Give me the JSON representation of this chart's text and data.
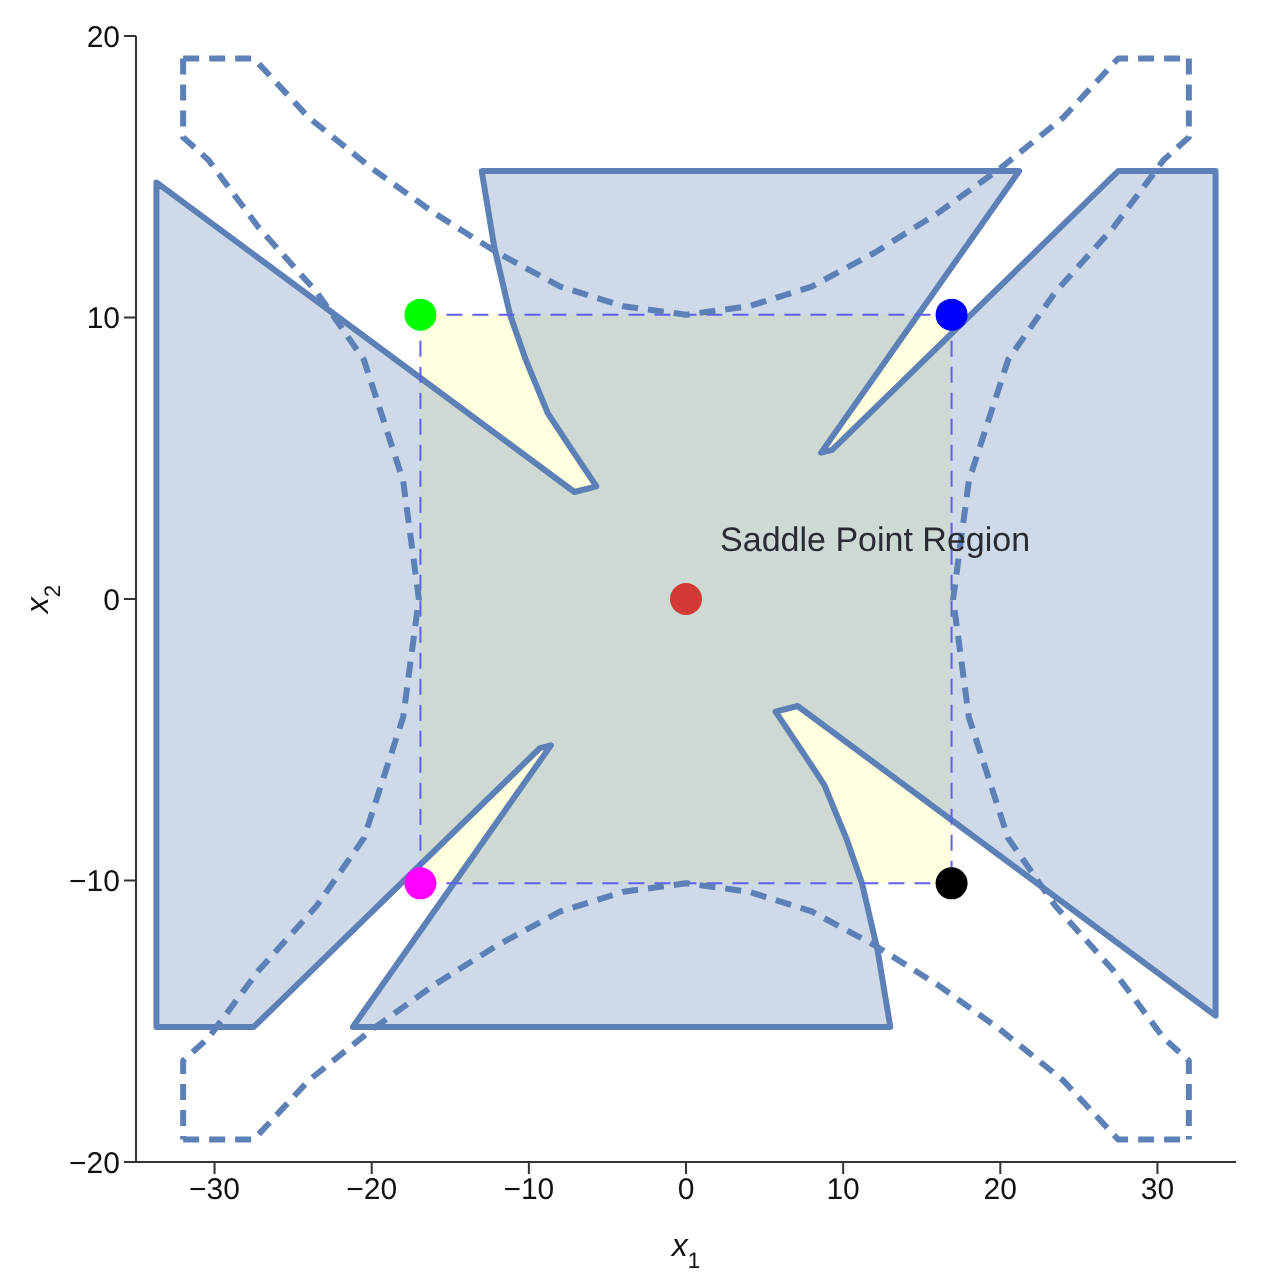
{
  "chart_data": {
    "type": "line",
    "xlabel": "x$_{1}$",
    "ylabel": "x$_{2}$",
    "xlim": [
      -35,
      35
    ],
    "ylim": [
      -20,
      20
    ],
    "xticks": [
      -30,
      -20,
      -10,
      0,
      10,
      20,
      30
    ],
    "yticks": [
      -20,
      -10,
      0,
      10,
      20
    ],
    "annotations": [
      "Saddle Point Region"
    ],
    "series": [
      {
        "type": "area",
        "color": "#ffff98",
        "x": [
          -16.9,
          16.9,
          16.9,
          -16.9,
          -16.9
        ],
        "values": [
          10.1,
          10.1,
          -10.1,
          -10.1,
          10.1
        ]
      },
      {
        "type": "area",
        "color": "#5d80b6",
        "line_style": "solid",
        "x": [
          -13,
          21.2,
          8.6,
          9.3,
          27.5,
          33.7,
          33.7,
          7.1,
          5.7,
          7.5,
          8.8,
          10.2,
          11.2,
          12.2,
          13,
          -21.2,
          -8.6,
          -9.3,
          -27.5,
          -33.7,
          -33.7,
          -7.1,
          -5.7,
          -7.5,
          -8.8,
          -10.2,
          -11.2,
          -12.2,
          -13
        ],
        "values": [
          15.2,
          15.2,
          5.2,
          5.3,
          15.2,
          15.2,
          -14.8,
          -3.8,
          -4.0,
          -5.5,
          -6.6,
          -8.5,
          -10.1,
          -12.5,
          -15.2,
          -15.2,
          -5.2,
          -5.3,
          -15.2,
          -15.2,
          14.8,
          3.8,
          4.0,
          5.5,
          6.6,
          8.5,
          10.1,
          12.5,
          15.2
        ]
      },
      {
        "color": "#6060f0",
        "line_style": "dashed",
        "x": [
          -16.9,
          16.9
        ],
        "values": [
          10.1,
          10.1
        ]
      },
      {
        "color": "#6060f0",
        "line_style": "dashed",
        "x": [
          -16.9,
          16.9
        ],
        "values": [
          -10.1,
          -10.1
        ]
      },
      {
        "color": "#6060f0",
        "line_style": "dashed",
        "x": [
          -16.9,
          -16.9
        ],
        "values": [
          10.1,
          -10.1
        ]
      },
      {
        "color": "#6060f0",
        "line_style": "dashed",
        "x": [
          16.9,
          16.9
        ],
        "values": [
          10.1,
          -10.1
        ]
      },
      {
        "color": "#5d80b6",
        "line_style": "dashed",
        "x": [
          -32,
          -27.5,
          -24,
          -20,
          -16,
          -12,
          -8,
          -4,
          0,
          4,
          8,
          12,
          16,
          20,
          24,
          27.5,
          32
        ],
        "values": [
          19.2,
          19.2,
          17.1,
          15.3,
          13.7,
          12.3,
          11.1,
          10.4,
          10.1,
          10.4,
          11.1,
          12.3,
          13.7,
          15.3,
          17.1,
          19.2,
          19.2
        ]
      },
      {
        "color": "#5d80b6",
        "line_style": "dashed",
        "x": [
          -32,
          -27.5,
          -24,
          -20,
          -16,
          -12,
          -8,
          -4,
          0,
          4,
          8,
          12,
          16,
          20,
          24,
          27.5,
          32
        ],
        "values": [
          -19.2,
          -19.2,
          -17.1,
          -15.3,
          -13.7,
          -12.3,
          -11.1,
          -10.4,
          -10.1,
          -10.4,
          -11.1,
          -12.3,
          -13.7,
          -15.3,
          -17.1,
          -19.2,
          -19.2
        ]
      },
      {
        "color": "#5d80b6",
        "line_style": "dashed",
        "x": [
          32,
          32,
          30.4,
          27.2,
          23.5,
          20.5,
          18,
          17,
          18,
          20.5,
          23.5,
          27.2,
          30.4,
          32,
          32
        ],
        "values": [
          19.2,
          16.4,
          15.6,
          13.2,
          10.9,
          8.5,
          4.2,
          0,
          -4.2,
          -8.5,
          -10.9,
          -13.2,
          -15.6,
          -16.4,
          -19.2
        ]
      },
      {
        "color": "#5d80b6",
        "line_style": "dashed",
        "x": [
          -32,
          -32,
          -30.4,
          -27.2,
          -23.5,
          -20.5,
          -18,
          -17,
          -18,
          -20.5,
          -23.5,
          -27.2,
          -30.4,
          -32,
          -32
        ],
        "values": [
          19.2,
          16.4,
          15.6,
          13.2,
          10.9,
          8.5,
          4.2,
          0,
          -4.2,
          -8.5,
          -10.9,
          -13.2,
          -15.6,
          -16.4,
          -19.2
        ]
      },
      {
        "type": "scatter",
        "marker": "circle",
        "color": "#00ff00",
        "x": [
          -16.9
        ],
        "values": [
          10.1
        ]
      },
      {
        "type": "scatter",
        "marker": "circle",
        "color": "#0000ff",
        "x": [
          16.9
        ],
        "values": [
          10.1
        ]
      },
      {
        "type": "scatter",
        "marker": "circle",
        "color": "#d33a35",
        "x": [
          0
        ],
        "values": [
          0
        ]
      },
      {
        "type": "scatter",
        "marker": "circle",
        "color": "#ff00ff",
        "x": [
          -16.9
        ],
        "values": [
          -10.1
        ]
      },
      {
        "type": "scatter",
        "marker": "circle",
        "color": "#000000",
        "x": [
          16.9
        ],
        "values": [
          -10.1
        ]
      }
    ]
  }
}
